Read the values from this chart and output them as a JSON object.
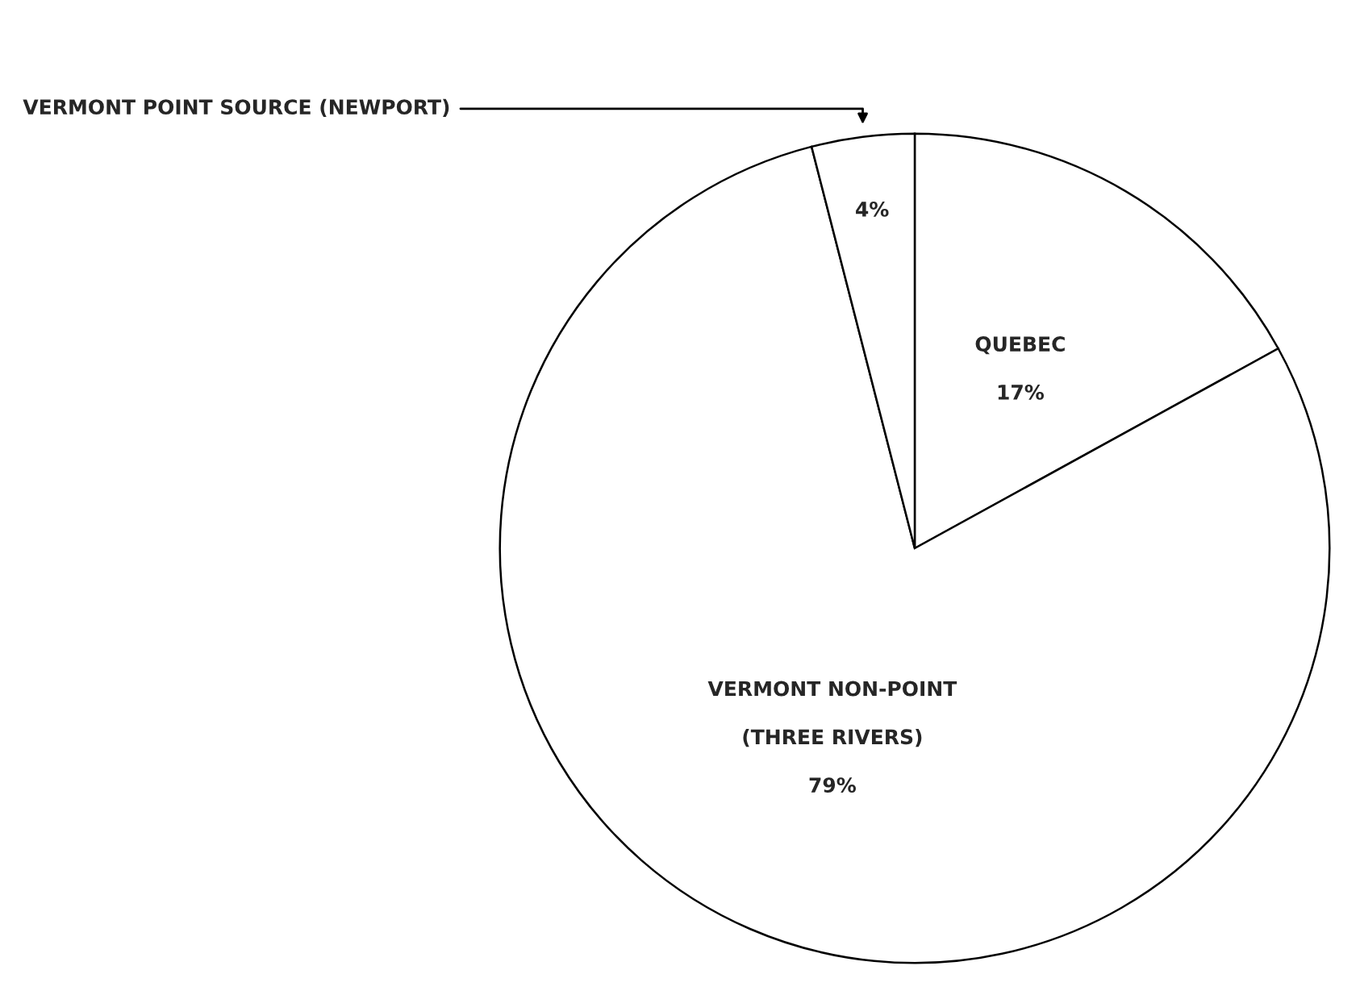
{
  "chart_data": {
    "type": "pie",
    "categories": [
      "QUEBEC",
      "VERMONT NON-POINT\n\n(THREE RIVERS)",
      "VERMONT POINT SOURCE (NEWPORT)"
    ],
    "values": [
      17,
      79,
      4
    ],
    "value_labels": [
      "17%",
      "79%",
      "4%"
    ],
    "colors": [
      "#ffffff",
      "#ffffff",
      "#ffffff"
    ]
  }
}
